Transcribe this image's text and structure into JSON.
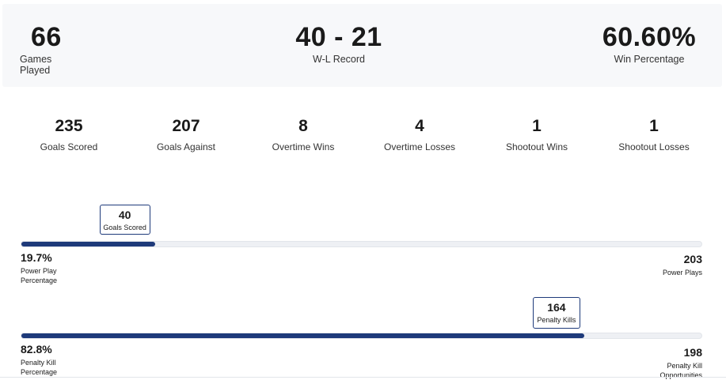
{
  "summary": [
    {
      "value": "66",
      "label": "Games Played"
    },
    {
      "value": "40 - 21",
      "label": "W-L Record"
    },
    {
      "value": "60.60%",
      "label": "Win Percentage"
    }
  ],
  "stats": [
    {
      "value": "235",
      "label": "Goals Scored"
    },
    {
      "value": "207",
      "label": "Goals Against"
    },
    {
      "value": "8",
      "label": "Overtime Wins"
    },
    {
      "value": "4",
      "label": "Overtime Losses"
    },
    {
      "value": "1",
      "label": "Shootout Wins"
    },
    {
      "value": "1",
      "label": "Shootout Losses"
    }
  ],
  "power_play": {
    "tip_value": "40",
    "tip_label": "Goals Scored",
    "pct": "19.7%",
    "pct_label": "Power Play Percentage",
    "fill_percent": 19.7,
    "total": "203",
    "total_label": "Power Plays"
  },
  "penalty_kill": {
    "tip_value": "164",
    "tip_label": "Penalty Kills",
    "pct": "82.8%",
    "pct_label": "Penalty Kill Percentage",
    "fill_percent": 82.8,
    "total": "198",
    "total_label": "Penalty Kill Opportunities"
  },
  "colors": {
    "bar_fill": "#1e3a7a",
    "track": "#eef0f4",
    "panel": "#f7f8fa"
  }
}
